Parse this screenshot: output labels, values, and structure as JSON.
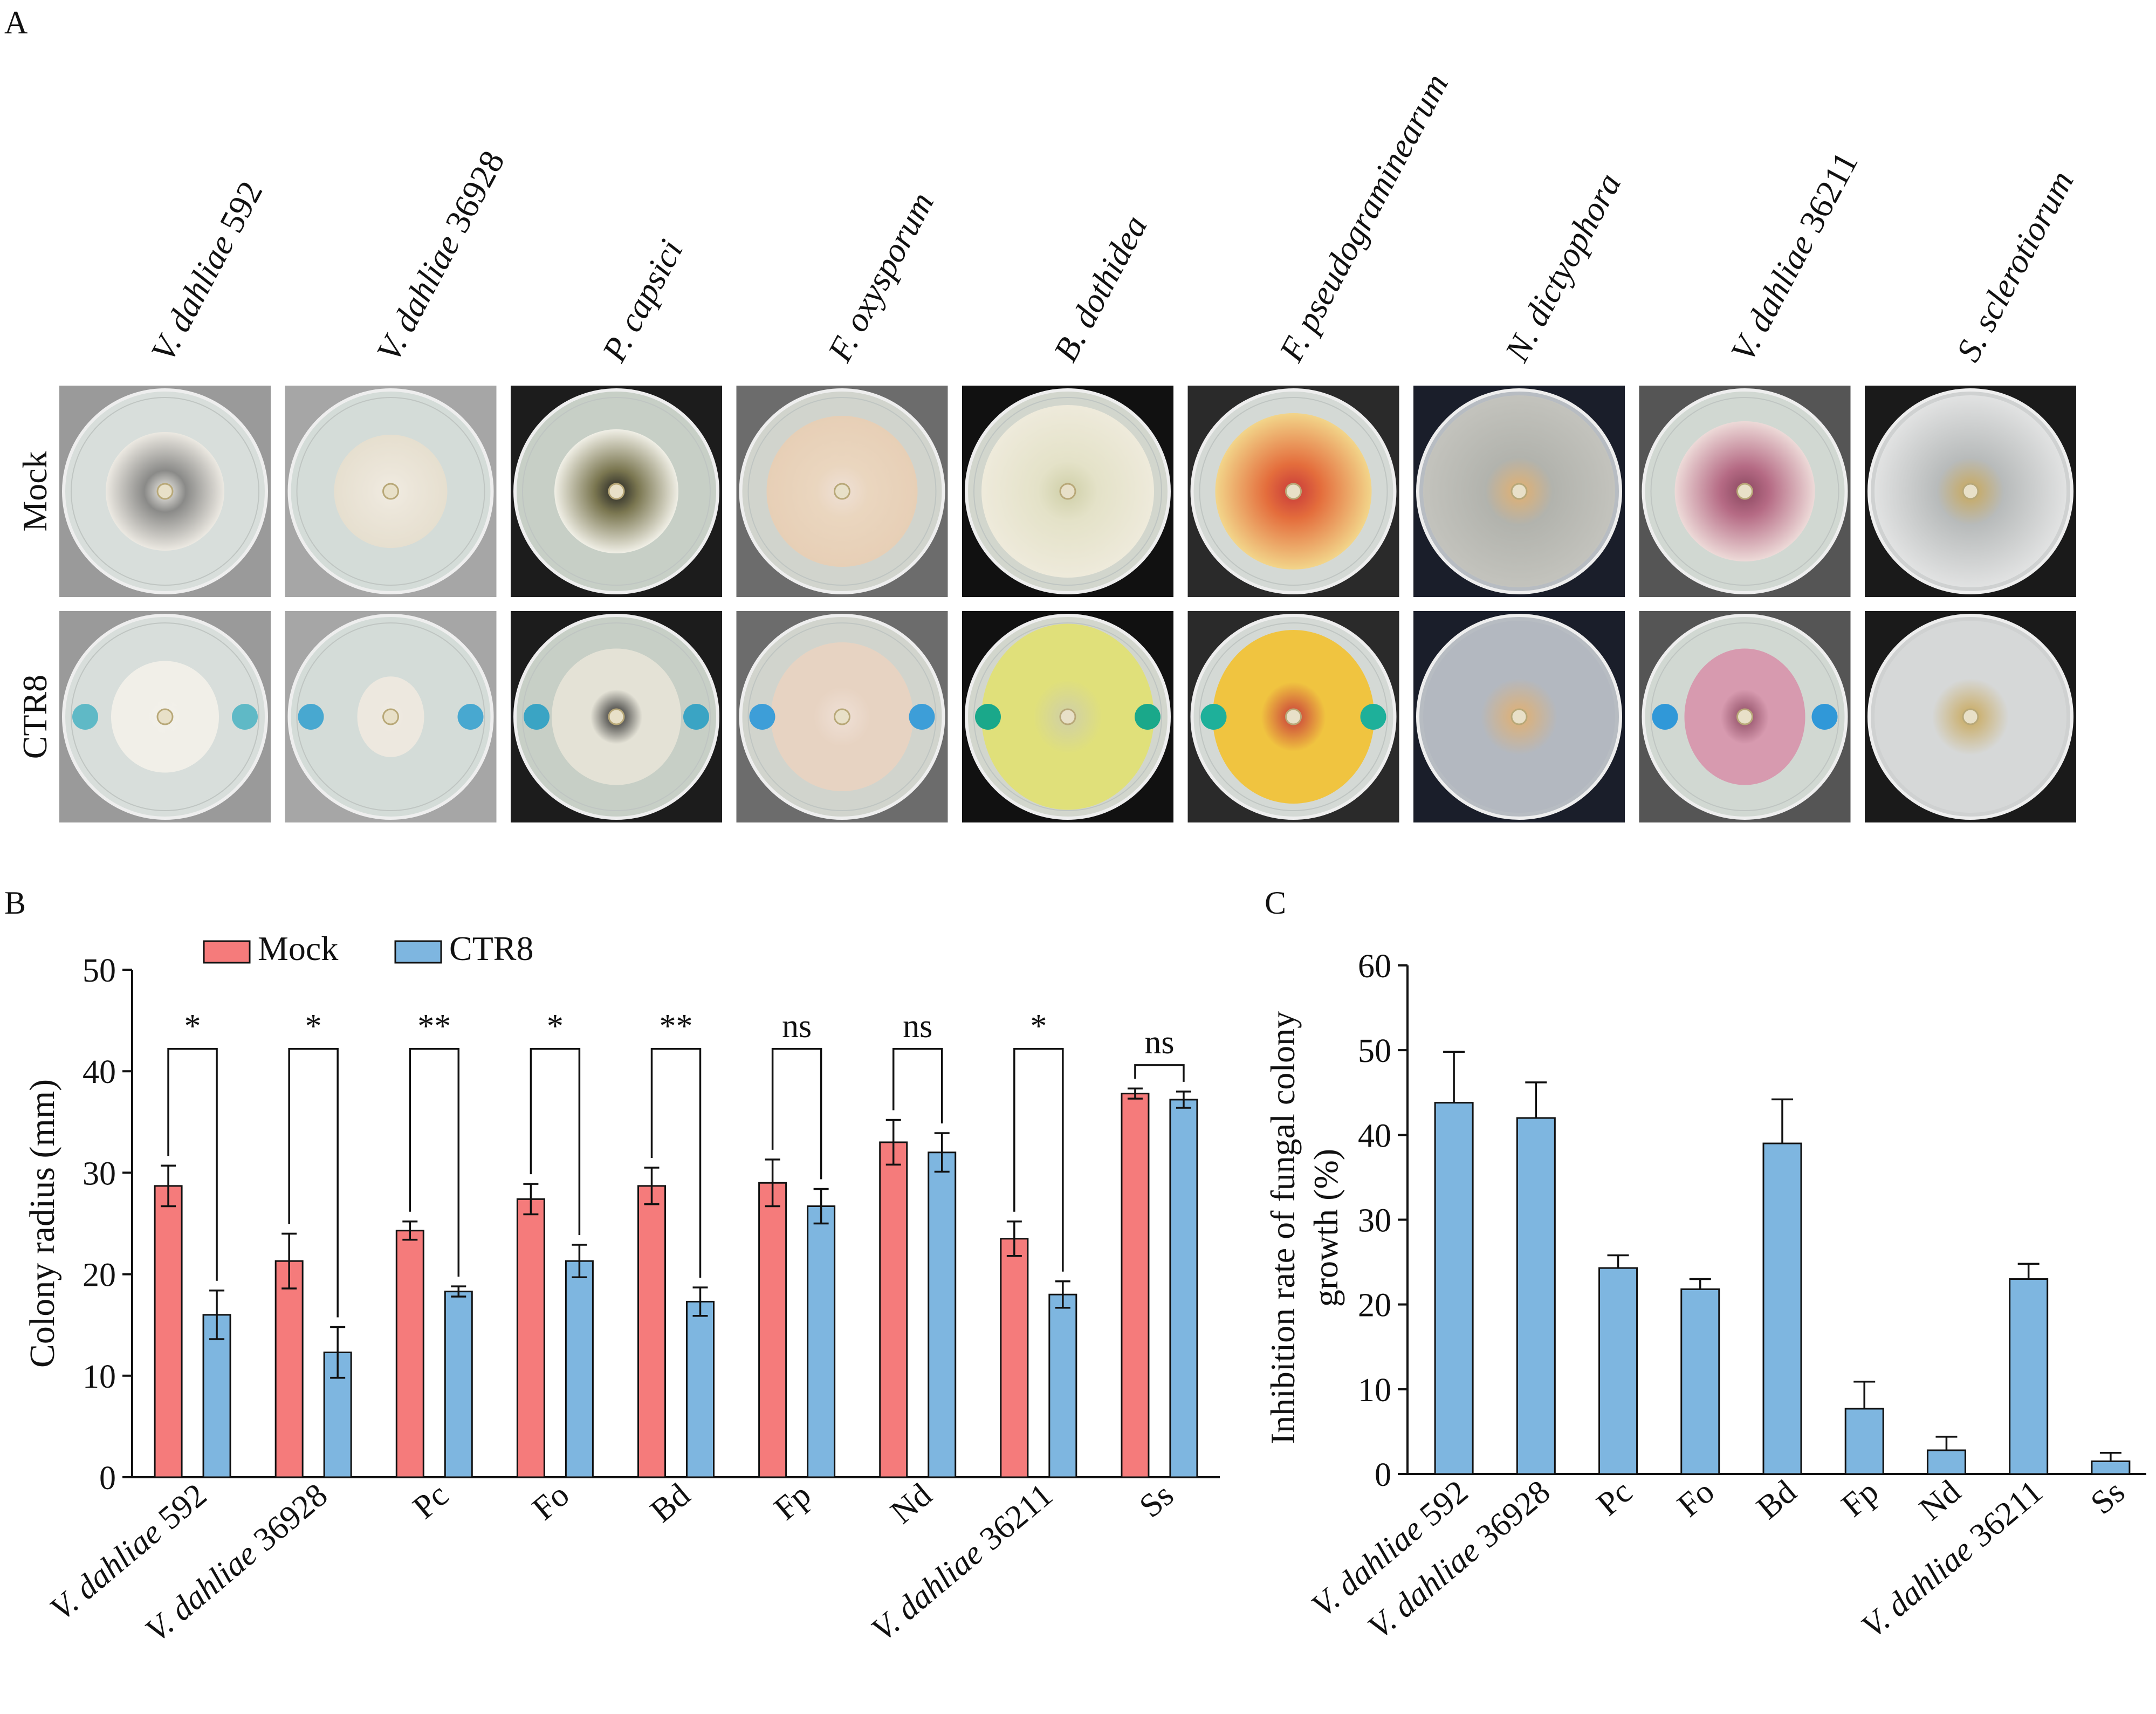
{
  "panel_labels": {
    "a": "A",
    "b": "B",
    "c": "C"
  },
  "panel_a": {
    "row_labels": [
      "Mock",
      "CTR8"
    ],
    "columns": [
      {
        "label": "V. dahliae 592",
        "italic_part": "V. dahliae",
        "plain_part": " 592"
      },
      {
        "label": "V. dahliae 36928",
        "italic_part": "V. dahliae",
        "plain_part": " 36928"
      },
      {
        "label": "P. capsici",
        "italic_part": "P. capsici",
        "plain_part": ""
      },
      {
        "label": "F. oxysporum",
        "italic_part": "F. oxysporum",
        "plain_part": ""
      },
      {
        "label": "B. dothidea",
        "italic_part": "B. dothidea",
        "plain_part": ""
      },
      {
        "label": "F. pseudograminearum",
        "italic_part": "F. pseudograminearum",
        "plain_part": ""
      },
      {
        "label": "N. dictyophora",
        "italic_part": "N. dictyophora",
        "plain_part": ""
      },
      {
        "label": "V. dahliae 36211",
        "italic_part": "V. dahliae",
        "plain_part": " 36211"
      },
      {
        "label": "S. sclerotiorum",
        "italic_part": "S. sclerotiorum",
        "plain_part": ""
      }
    ],
    "plates": [
      {
        "bg": "#9a9a9a",
        "agar": "#d8dedb",
        "colony": [
          "#f2f0ea",
          "#8a8a88",
          "#ece9e2"
        ],
        "treated_colony": "#f1efe8",
        "well": "#5fb9c6"
      },
      {
        "bg": "#a6a6a6",
        "agar": "#d4dcd8",
        "colony": [
          "#f1ece2",
          "#ece6da",
          "#e6dfcf"
        ],
        "treated_colony": "#ede8df",
        "well": "#48a8d0"
      },
      {
        "bg": "#1c1c1c",
        "agar": "#c7cfc6",
        "colony": [
          "#222",
          "#7a7650",
          "#f0efe6"
        ],
        "treated_colony": "#e4e2d6",
        "well": "#3aa4c4"
      },
      {
        "bg": "#6c6c6c",
        "agar": "#d1d4cd",
        "colony": [
          "#efe0d6",
          "#ead6bf",
          "#e7cfb6"
        ],
        "treated_colony": "#e7d3c2",
        "well": "#3d9ed8"
      },
      {
        "bg": "#111111",
        "agar": "#d2d6cd",
        "colony": [
          "#cfcfa8",
          "#e4e2c8",
          "#eeeadb"
        ],
        "treated_colony": "#e0e07a",
        "well": "#1aa88a"
      },
      {
        "bg": "#2a2a2a",
        "agar": "#d4d9d5",
        "colony": [
          "#c83a3a",
          "#e46d3c",
          "#f2d58a"
        ],
        "treated_colony": "#f0c440",
        "well": "#1eb09a"
      },
      {
        "bg": "#1a1e2a",
        "agar": "#b7bcc2",
        "colony": [
          "#e2b070",
          "#b2b3ad",
          "#c3c3bd"
        ],
        "treated_colony": "#b3b8c0",
        "well": "#b3b8c0"
      },
      {
        "bg": "#555555",
        "agar": "#d1d8d2",
        "colony": [
          "#8a4860",
          "#b56a84",
          "#eddad8"
        ],
        "treated_colony": "#d79aaf",
        "well": "#3098d8"
      },
      {
        "bg": "#1a1a1a",
        "agar": "#cfd1d1",
        "colony": [
          "#c9a85a",
          "#b8bbbb",
          "#e1e2e2"
        ],
        "treated_colony": "#d6d8d8",
        "well": "#d6d8d8"
      }
    ]
  },
  "chart_data": [
    {
      "panel": "B",
      "type": "bar",
      "ylabel": "Colony radius (mm)",
      "ylim": [
        0,
        50
      ],
      "yticks": [
        "0",
        "10",
        "20",
        "30",
        "40",
        "50"
      ],
      "legend_position": "top-left",
      "categories": [
        "V. dahliae 592",
        "V. dahliae 36928",
        "Pc",
        "Fo",
        "Bd",
        "Fp",
        "Nd",
        "V. dahliae 36211",
        "Ss"
      ],
      "category_labels": [
        {
          "italic": "V. dahliae",
          "plain": " 592"
        },
        {
          "italic": "V. dahliae",
          "plain": " 36928"
        },
        {
          "italic": "",
          "plain": "Pc"
        },
        {
          "italic": "",
          "plain": "Fo"
        },
        {
          "italic": "",
          "plain": "Bd"
        },
        {
          "italic": "",
          "plain": "Fp"
        },
        {
          "italic": "",
          "plain": "Nd"
        },
        {
          "italic": "V. dahliae",
          "plain": " 36211"
        },
        {
          "italic": "",
          "plain": "Ss"
        }
      ],
      "series": [
        {
          "name": "Mock",
          "color": "#f57b7b",
          "values": [
            28.7,
            21.3,
            24.3,
            27.4,
            28.7,
            29.0,
            33.0,
            23.5,
            37.8
          ],
          "errors": [
            2.0,
            2.7,
            0.9,
            1.5,
            1.8,
            2.3,
            2.2,
            1.7,
            0.5
          ]
        },
        {
          "name": "CTR8",
          "color": "#7eb6e0",
          "values": [
            16.0,
            12.3,
            18.3,
            21.3,
            17.3,
            26.7,
            32.0,
            18.0,
            37.2
          ],
          "errors": [
            2.4,
            2.5,
            0.5,
            1.6,
            1.4,
            1.7,
            1.9,
            1.3,
            0.8
          ]
        }
      ],
      "significance": [
        "*",
        "*",
        "**",
        "*",
        "**",
        "ns",
        "ns",
        "*",
        "ns"
      ]
    },
    {
      "panel": "C",
      "type": "bar",
      "ylabel": "Inhibition rate of fungal colony growth (%)",
      "ylabel_lines": [
        "Inhibition rate of fungal colony",
        "growth (%)"
      ],
      "ylim": [
        0,
        60
      ],
      "yticks": [
        "0",
        "10",
        "20",
        "30",
        "40",
        "50",
        "60"
      ],
      "categories": [
        "V. dahliae 592",
        "V. dahliae 36928",
        "Pc",
        "Fo",
        "Bd",
        "Fp",
        "Nd",
        "V. dahliae 36211",
        "Ss"
      ],
      "category_labels": [
        {
          "italic": "V. dahliae",
          "plain": " 592"
        },
        {
          "italic": "V. dahliae",
          "plain": " 36928"
        },
        {
          "italic": "",
          "plain": "Pc"
        },
        {
          "italic": "",
          "plain": "Fo"
        },
        {
          "italic": "",
          "plain": "Bd"
        },
        {
          "italic": "",
          "plain": "Fp"
        },
        {
          "italic": "",
          "plain": "Nd"
        },
        {
          "italic": "V. dahliae",
          "plain": " 36211"
        },
        {
          "italic": "",
          "plain": "Ss"
        }
      ],
      "series": [
        {
          "color": "#7eb6e0",
          "values": [
            43.8,
            42.0,
            24.3,
            21.8,
            39.0,
            7.7,
            2.8,
            23.0,
            1.5
          ],
          "errors": [
            6.0,
            4.2,
            1.5,
            1.2,
            5.2,
            3.2,
            1.6,
            1.8,
            1.0
          ]
        }
      ]
    }
  ]
}
